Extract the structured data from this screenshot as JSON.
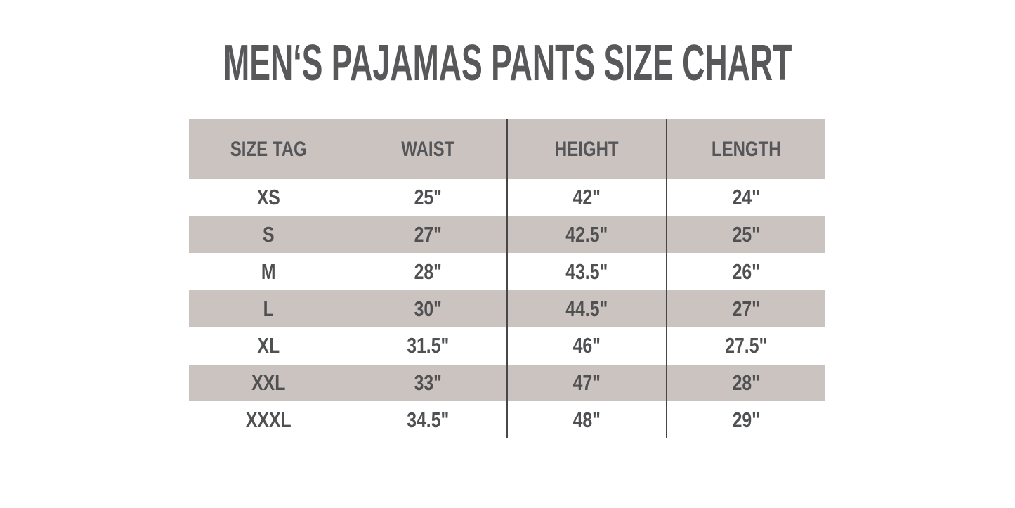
{
  "title": "MEN‘S PAJAMAS PANTS SIZE CHART",
  "table": {
    "columns": [
      "SIZE TAG",
      "WAIST",
      "HEIGHT",
      "LENGTH"
    ],
    "rows": [
      {
        "size": "XS",
        "waist": "25\"",
        "height": "42\"",
        "length": "24\""
      },
      {
        "size": "S",
        "waist": "27\"",
        "height": "42.5\"",
        "length": "25\""
      },
      {
        "size": "M",
        "waist": "28\"",
        "height": "43.5\"",
        "length": "26\""
      },
      {
        "size": "L",
        "waist": "30\"",
        "height": "44.5\"",
        "length": "27\""
      },
      {
        "size": "XL",
        "waist": "31.5\"",
        "height": "46\"",
        "length": "27.5\""
      },
      {
        "size": "XXL",
        "waist": "33\"",
        "height": "47\"",
        "length": "28\""
      },
      {
        "size": "XXXL",
        "waist": "34.5\"",
        "height": "48\"",
        "length": "29\""
      }
    ]
  },
  "colors": {
    "background": "#ffffff",
    "stripe_beige": "#cbc3bf",
    "title_text": "#58585a",
    "cell_text": "#4f5052",
    "divider_line": "#47474a"
  }
}
